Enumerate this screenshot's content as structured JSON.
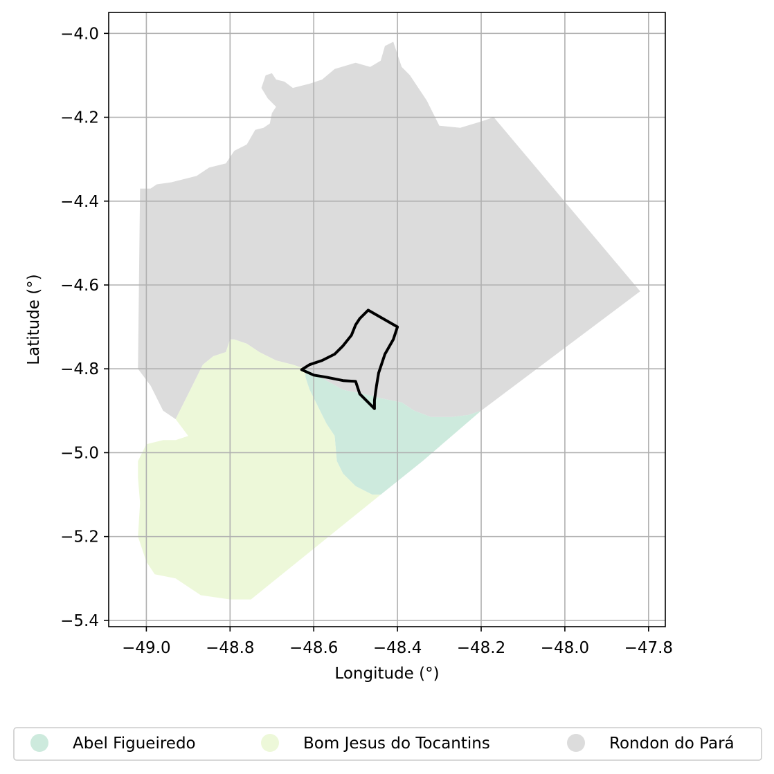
{
  "chart_data": {
    "type": "map",
    "xlabel": "Longitude (°)",
    "ylabel": "Latitude (°)",
    "xlim": [
      -49.09,
      -47.76
    ],
    "ylim": [
      -5.415,
      -3.95
    ],
    "xticks": [
      -49.0,
      -48.8,
      -48.6,
      -48.4,
      -48.2,
      -48.0,
      -47.8
    ],
    "xtick_labels": [
      "−49.0",
      "−48.8",
      "−48.6",
      "−48.4",
      "−48.2",
      "−48.0",
      "−47.8"
    ],
    "yticks": [
      -4.0,
      -4.2,
      -4.4,
      -4.6,
      -4.8,
      -5.0,
      -5.2,
      -5.4
    ],
    "ytick_labels": [
      "−4.0",
      "−4.2",
      "−4.4",
      "−4.6",
      "−4.8",
      "−5.0",
      "−5.2",
      "−5.4"
    ],
    "grid": true,
    "legend_position": "bottom",
    "regions": [
      {
        "name": "Rondon do Pará",
        "color": "#dcdcdc",
        "polygon": [
          [
            -49.015,
            -4.37
          ],
          [
            -48.99,
            -4.37
          ],
          [
            -48.975,
            -4.36
          ],
          [
            -48.94,
            -4.355
          ],
          [
            -48.88,
            -4.34
          ],
          [
            -48.85,
            -4.32
          ],
          [
            -48.81,
            -4.31
          ],
          [
            -48.79,
            -4.28
          ],
          [
            -48.76,
            -4.265
          ],
          [
            -48.74,
            -4.23
          ],
          [
            -48.72,
            -4.225
          ],
          [
            -48.705,
            -4.215
          ],
          [
            -48.7,
            -4.19
          ],
          [
            -48.69,
            -4.175
          ],
          [
            -48.71,
            -4.155
          ],
          [
            -48.725,
            -4.13
          ],
          [
            -48.715,
            -4.1
          ],
          [
            -48.7,
            -4.095
          ],
          [
            -48.69,
            -4.11
          ],
          [
            -48.67,
            -4.115
          ],
          [
            -48.65,
            -4.13
          ],
          [
            -48.61,
            -4.12
          ],
          [
            -48.58,
            -4.11
          ],
          [
            -48.55,
            -4.085
          ],
          [
            -48.5,
            -4.07
          ],
          [
            -48.465,
            -4.08
          ],
          [
            -48.44,
            -4.065
          ],
          [
            -48.43,
            -4.03
          ],
          [
            -48.41,
            -4.02
          ],
          [
            -48.39,
            -4.08
          ],
          [
            -48.37,
            -4.1
          ],
          [
            -48.35,
            -4.13
          ],
          [
            -48.33,
            -4.16
          ],
          [
            -48.3,
            -4.22
          ],
          [
            -48.25,
            -4.225
          ],
          [
            -48.2,
            -4.21
          ],
          [
            -48.17,
            -4.2
          ],
          [
            -47.82,
            -4.615
          ],
          [
            -48.2,
            -4.9
          ],
          [
            -48.23,
            -4.91
          ],
          [
            -48.27,
            -4.915
          ],
          [
            -48.32,
            -4.915
          ],
          [
            -48.36,
            -4.9
          ],
          [
            -48.39,
            -4.88
          ],
          [
            -48.44,
            -4.87
          ],
          [
            -48.48,
            -4.86
          ],
          [
            -48.53,
            -4.85
          ],
          [
            -48.62,
            -4.8
          ],
          [
            -48.65,
            -4.79
          ],
          [
            -48.69,
            -4.78
          ],
          [
            -48.73,
            -4.76
          ],
          [
            -48.76,
            -4.74
          ],
          [
            -48.79,
            -4.73
          ],
          [
            -48.8,
            -4.73
          ],
          [
            -48.81,
            -4.76
          ],
          [
            -48.84,
            -4.77
          ],
          [
            -48.865,
            -4.79
          ],
          [
            -48.9,
            -4.86
          ],
          [
            -48.93,
            -4.92
          ],
          [
            -48.96,
            -4.9
          ],
          [
            -48.99,
            -4.84
          ],
          [
            -49.02,
            -4.8
          ]
        ]
      },
      {
        "name": "Abel Figueiredo",
        "color": "#cdeadd",
        "polygon": [
          [
            -48.62,
            -4.8
          ],
          [
            -48.53,
            -4.85
          ],
          [
            -48.48,
            -4.86
          ],
          [
            -48.44,
            -4.87
          ],
          [
            -48.39,
            -4.88
          ],
          [
            -48.36,
            -4.9
          ],
          [
            -48.32,
            -4.915
          ],
          [
            -48.27,
            -4.915
          ],
          [
            -48.23,
            -4.91
          ],
          [
            -48.2,
            -4.9
          ],
          [
            -48.34,
            -5.02
          ],
          [
            -48.44,
            -5.1
          ],
          [
            -48.46,
            -5.1
          ],
          [
            -48.5,
            -5.08
          ],
          [
            -48.53,
            -5.05
          ],
          [
            -48.545,
            -5.02
          ],
          [
            -48.55,
            -4.96
          ],
          [
            -48.57,
            -4.93
          ],
          [
            -48.59,
            -4.89
          ],
          [
            -48.61,
            -4.85
          ],
          [
            -48.62,
            -4.82
          ]
        ]
      },
      {
        "name": "Bom Jesus do Tocantins",
        "color": "#edf8d9",
        "polygon": [
          [
            -48.8,
            -4.73
          ],
          [
            -48.79,
            -4.73
          ],
          [
            -48.76,
            -4.74
          ],
          [
            -48.73,
            -4.76
          ],
          [
            -48.69,
            -4.78
          ],
          [
            -48.65,
            -4.79
          ],
          [
            -48.62,
            -4.8
          ],
          [
            -48.62,
            -4.82
          ],
          [
            -48.61,
            -4.85
          ],
          [
            -48.59,
            -4.89
          ],
          [
            -48.57,
            -4.93
          ],
          [
            -48.55,
            -4.96
          ],
          [
            -48.545,
            -5.02
          ],
          [
            -48.53,
            -5.05
          ],
          [
            -48.5,
            -5.08
          ],
          [
            -48.46,
            -5.1
          ],
          [
            -48.44,
            -5.1
          ],
          [
            -48.75,
            -5.35
          ],
          [
            -48.8,
            -5.35
          ],
          [
            -48.87,
            -5.34
          ],
          [
            -48.93,
            -5.3
          ],
          [
            -48.98,
            -5.29
          ],
          [
            -49.0,
            -5.26
          ],
          [
            -49.02,
            -5.2
          ],
          [
            -49.015,
            -5.12
          ],
          [
            -49.02,
            -5.06
          ],
          [
            -49.02,
            -5.02
          ],
          [
            -49.0,
            -4.98
          ],
          [
            -48.96,
            -4.97
          ],
          [
            -48.93,
            -4.97
          ],
          [
            -48.9,
            -4.96
          ],
          [
            -48.93,
            -4.92
          ],
          [
            -48.9,
            -4.86
          ],
          [
            -48.865,
            -4.79
          ],
          [
            -48.84,
            -4.77
          ],
          [
            -48.81,
            -4.76
          ]
        ]
      }
    ],
    "outline": {
      "color": "#000000",
      "polygon": [
        [
          -48.629,
          -4.802
        ],
        [
          -48.61,
          -4.79
        ],
        [
          -48.58,
          -4.78
        ],
        [
          -48.55,
          -4.765
        ],
        [
          -48.53,
          -4.745
        ],
        [
          -48.51,
          -4.72
        ],
        [
          -48.5,
          -4.695
        ],
        [
          -48.49,
          -4.68
        ],
        [
          -48.47,
          -4.66
        ],
        [
          -48.4,
          -4.7
        ],
        [
          -48.41,
          -4.73
        ],
        [
          -48.43,
          -4.765
        ],
        [
          -48.445,
          -4.81
        ],
        [
          -48.45,
          -4.84
        ],
        [
          -48.455,
          -4.875
        ],
        [
          -48.455,
          -4.895
        ],
        [
          -48.47,
          -4.88
        ],
        [
          -48.49,
          -4.86
        ],
        [
          -48.5,
          -4.83
        ],
        [
          -48.53,
          -4.828
        ],
        [
          -48.57,
          -4.82
        ],
        [
          -48.6,
          -4.815
        ],
        [
          -48.629,
          -4.802
        ]
      ]
    }
  },
  "legend": {
    "items": [
      {
        "label": "Abel Figueiredo",
        "color": "#cdeadd"
      },
      {
        "label": "Bom Jesus do Tocantins",
        "color": "#edf8d9"
      },
      {
        "label": "Rondon do Pará",
        "color": "#dcdcdc"
      }
    ]
  }
}
